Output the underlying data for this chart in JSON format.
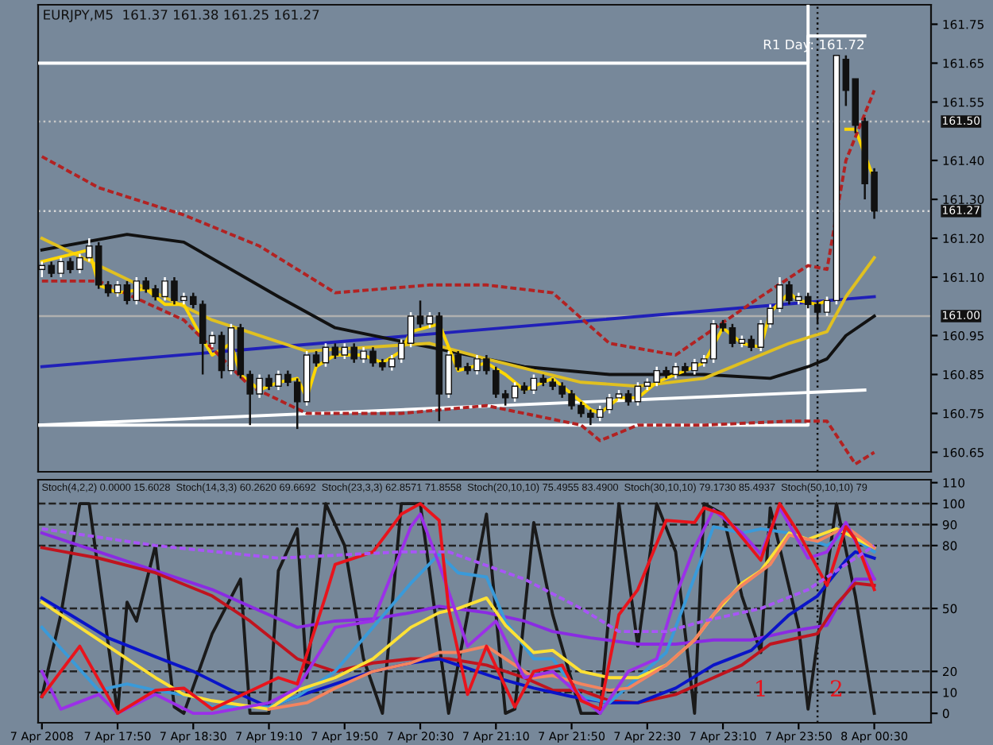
{
  "chart_data": [
    {
      "type": "candlestick",
      "title": "EURJPY,M5  161.37 161.38 161.25 161.27",
      "x": [
        "2008-04-07T17:10",
        "2008-04-07T17:15",
        "2008-04-07T17:20",
        "2008-04-07T17:25",
        "2008-04-07T17:30",
        "2008-04-07T17:35",
        "2008-04-07T17:40",
        "2008-04-07T17:45",
        "2008-04-07T17:50",
        "2008-04-07T17:55",
        "2008-04-07T18:00",
        "2008-04-07T18:05",
        "2008-04-07T18:10",
        "2008-04-07T18:15",
        "2008-04-07T18:20",
        "2008-04-07T18:25",
        "2008-04-07T18:30",
        "2008-04-07T18:35",
        "2008-04-07T18:40",
        "2008-04-07T18:45",
        "2008-04-07T18:50",
        "2008-04-07T18:55",
        "2008-04-07T19:00",
        "2008-04-07T19:05",
        "2008-04-07T19:10",
        "2008-04-07T19:15",
        "2008-04-07T19:20",
        "2008-04-07T19:25",
        "2008-04-07T19:30",
        "2008-04-07T19:35",
        "2008-04-07T19:40",
        "2008-04-07T19:45",
        "2008-04-07T19:50",
        "2008-04-07T19:55",
        "2008-04-07T20:00",
        "2008-04-07T20:05",
        "2008-04-07T20:10",
        "2008-04-07T20:15",
        "2008-04-07T20:20",
        "2008-04-07T20:25",
        "2008-04-07T20:30",
        "2008-04-07T20:35",
        "2008-04-07T20:40",
        "2008-04-07T20:45",
        "2008-04-07T20:50",
        "2008-04-07T20:55",
        "2008-04-07T21:00",
        "2008-04-07T21:05",
        "2008-04-07T21:10",
        "2008-04-07T21:15",
        "2008-04-07T21:20",
        "2008-04-07T21:25",
        "2008-04-07T21:30",
        "2008-04-07T21:35",
        "2008-04-07T21:40",
        "2008-04-07T21:45",
        "2008-04-07T21:50",
        "2008-04-07T21:55",
        "2008-04-07T22:00",
        "2008-04-07T22:05",
        "2008-04-07T22:10",
        "2008-04-07T22:15",
        "2008-04-07T22:20",
        "2008-04-07T22:25",
        "2008-04-07T22:30",
        "2008-04-07T22:35",
        "2008-04-07T22:40",
        "2008-04-07T22:45",
        "2008-04-07T22:50",
        "2008-04-07T22:55",
        "2008-04-07T23:00",
        "2008-04-07T23:05",
        "2008-04-07T23:10",
        "2008-04-07T23:15",
        "2008-04-07T23:20",
        "2008-04-07T23:25",
        "2008-04-07T23:30",
        "2008-04-07T23:35",
        "2008-04-07T23:40",
        "2008-04-07T23:45",
        "2008-04-07T23:50",
        "2008-04-07T23:55",
        "2008-04-08T00:00",
        "2008-04-08T00:05",
        "2008-04-08T00:10",
        "2008-04-08T00:15",
        "2008-04-08T00:20",
        "2008-04-08T00:25",
        "2008-04-08T00:30"
      ],
      "ohlc": [
        [
          161.12,
          161.14,
          161.1,
          161.13
        ],
        [
          161.13,
          161.14,
          161.1,
          161.11
        ],
        [
          161.11,
          161.15,
          161.1,
          161.14
        ],
        [
          161.14,
          161.15,
          161.11,
          161.12
        ],
        [
          161.12,
          161.16,
          161.11,
          161.15
        ],
        [
          161.15,
          161.2,
          161.14,
          161.18
        ],
        [
          161.18,
          161.19,
          161.07,
          161.08
        ],
        [
          161.08,
          161.09,
          161.05,
          161.06
        ],
        [
          161.06,
          161.09,
          161.05,
          161.08
        ],
        [
          161.08,
          161.09,
          161.03,
          161.04
        ],
        [
          161.04,
          161.1,
          161.03,
          161.09
        ],
        [
          161.09,
          161.1,
          161.06,
          161.07
        ],
        [
          161.07,
          161.08,
          161.04,
          161.05
        ],
        [
          161.05,
          161.1,
          161.04,
          161.09
        ],
        [
          161.09,
          161.1,
          161.03,
          161.04
        ],
        [
          161.04,
          161.06,
          161.03,
          161.05
        ],
        [
          161.05,
          161.06,
          161.02,
          161.03
        ],
        [
          161.03,
          161.04,
          160.85,
          160.93
        ],
        [
          160.93,
          160.96,
          160.92,
          160.95
        ],
        [
          160.95,
          160.96,
          160.84,
          160.86
        ],
        [
          160.86,
          160.98,
          160.85,
          160.97
        ],
        [
          160.97,
          160.98,
          160.84,
          160.85
        ],
        [
          160.85,
          160.86,
          160.72,
          160.8
        ],
        [
          160.8,
          160.85,
          160.79,
          160.84
        ],
        [
          160.84,
          160.85,
          160.81,
          160.82
        ],
        [
          160.82,
          160.86,
          160.81,
          160.85
        ],
        [
          160.85,
          160.86,
          160.82,
          160.83
        ],
        [
          160.83,
          160.84,
          160.71,
          160.78
        ],
        [
          160.78,
          160.91,
          160.77,
          160.9
        ],
        [
          160.9,
          160.91,
          160.87,
          160.88
        ],
        [
          160.88,
          160.93,
          160.87,
          160.92
        ],
        [
          160.92,
          160.93,
          160.89,
          160.9
        ],
        [
          160.9,
          160.93,
          160.89,
          160.92
        ],
        [
          160.92,
          160.93,
          160.88,
          160.89
        ],
        [
          160.89,
          160.92,
          160.88,
          160.91
        ],
        [
          160.91,
          160.92,
          160.87,
          160.88
        ],
        [
          160.88,
          160.89,
          160.86,
          160.87
        ],
        [
          160.87,
          160.9,
          160.86,
          160.89
        ],
        [
          160.89,
          160.94,
          160.88,
          160.93
        ],
        [
          160.93,
          161.01,
          160.92,
          161.0
        ],
        [
          161.0,
          161.04,
          160.97,
          160.98
        ],
        [
          160.98,
          161.01,
          160.97,
          161.0
        ],
        [
          161.0,
          161.01,
          160.73,
          160.8
        ],
        [
          160.8,
          160.91,
          160.79,
          160.9
        ],
        [
          160.9,
          160.91,
          160.86,
          160.87
        ],
        [
          160.87,
          160.88,
          160.85,
          160.86
        ],
        [
          160.86,
          160.9,
          160.85,
          160.89
        ],
        [
          160.89,
          160.9,
          160.85,
          160.86
        ],
        [
          160.86,
          160.87,
          160.79,
          160.8
        ],
        [
          160.8,
          160.81,
          160.77,
          160.79
        ],
        [
          160.79,
          160.83,
          160.78,
          160.82
        ],
        [
          160.82,
          160.83,
          160.8,
          160.81
        ],
        [
          160.81,
          160.85,
          160.8,
          160.84
        ],
        [
          160.84,
          160.85,
          160.82,
          160.83
        ],
        [
          160.83,
          160.84,
          160.81,
          160.82
        ],
        [
          160.82,
          160.83,
          160.79,
          160.8
        ],
        [
          160.8,
          160.81,
          160.76,
          160.77
        ],
        [
          160.77,
          160.78,
          160.74,
          160.75
        ],
        [
          160.75,
          160.76,
          160.72,
          160.74
        ],
        [
          160.74,
          160.77,
          160.73,
          160.76
        ],
        [
          160.76,
          160.8,
          160.75,
          160.79
        ],
        [
          160.79,
          160.81,
          160.78,
          160.8
        ],
        [
          160.8,
          160.81,
          160.77,
          160.78
        ],
        [
          160.78,
          160.83,
          160.77,
          160.82
        ],
        [
          160.82,
          160.84,
          160.81,
          160.83
        ],
        [
          160.83,
          160.87,
          160.82,
          160.86
        ],
        [
          160.86,
          160.87,
          160.84,
          160.85
        ],
        [
          160.85,
          160.88,
          160.84,
          160.87
        ],
        [
          160.87,
          160.88,
          160.85,
          160.86
        ],
        [
          160.86,
          160.89,
          160.85,
          160.88
        ],
        [
          160.88,
          160.9,
          160.87,
          160.89
        ],
        [
          160.89,
          160.99,
          160.88,
          160.98
        ],
        [
          160.98,
          160.99,
          160.96,
          160.97
        ],
        [
          160.97,
          160.98,
          160.92,
          160.93
        ],
        [
          160.93,
          160.95,
          160.92,
          160.94
        ],
        [
          160.94,
          160.95,
          160.91,
          160.92
        ],
        [
          160.92,
          160.99,
          160.91,
          160.98
        ],
        [
          160.98,
          161.03,
          160.97,
          161.02
        ],
        [
          161.02,
          161.1,
          161.01,
          161.08
        ],
        [
          161.08,
          161.09,
          161.03,
          161.04
        ],
        [
          161.04,
          161.06,
          161.03,
          161.05
        ],
        [
          161.05,
          161.06,
          161.02,
          161.03
        ],
        [
          161.03,
          161.04,
          160.98,
          161.01
        ],
        [
          161.01,
          161.05,
          161.0,
          161.04
        ],
        [
          161.04,
          161.67,
          161.03,
          161.67
        ],
        [
          161.66,
          161.67,
          161.54,
          161.58
        ],
        [
          161.61,
          161.61,
          161.47,
          161.49
        ],
        [
          161.5,
          161.51,
          161.3,
          161.34
        ],
        [
          161.37,
          161.38,
          161.25,
          161.27
        ]
      ],
      "series": [
        {
          "type": "line",
          "color": "#ffffff",
          "x": [
            "2008-04-07T17:08",
            "2008-04-07T23:55",
            "2008-04-07T23:55",
            "2008-04-08T00:25"
          ],
          "values": [
            161.65,
            161.65,
            161.72,
            161.72
          ]
        },
        {
          "type": "line",
          "color": "#ffffff",
          "x": [
            "2008-04-07T17:08",
            "2008-04-07T23:55",
            "2008-04-07T23:55"
          ],
          "values": [
            160.72,
            160.72,
            161.8
          ]
        },
        {
          "type": "line",
          "color": "#ffffff",
          "x": [
            "2008-04-07T17:08",
            "2008-04-08T00:25"
          ],
          "values": [
            160.72,
            160.81
          ]
        },
        {
          "type": "line",
          "color": "#2020b8",
          "x": [
            "2008-04-07T17:10",
            "2008-04-08T00:30"
          ],
          "values": [
            160.87,
            161.05
          ]
        },
        {
          "type": "line",
          "color": "#b22222",
          "line_style": "dashed",
          "x": [
            "2008-04-07T17:10",
            "2008-04-07T17:40",
            "2008-04-07T18:25",
            "2008-04-07T19:05",
            "2008-04-07T19:15",
            "2008-04-07T19:45",
            "2008-04-07T20:35",
            "2008-04-07T21:05",
            "2008-04-07T21:40",
            "2008-04-07T22:10",
            "2008-04-07T22:45",
            "2008-04-07T23:30",
            "2008-04-07T23:55",
            "2008-04-08T00:05",
            "2008-04-08T00:15",
            "2008-04-08T00:30"
          ],
          "values": [
            161.41,
            161.33,
            161.26,
            161.18,
            161.15,
            161.06,
            161.08,
            161.08,
            161.06,
            160.93,
            160.9,
            161.05,
            161.13,
            161.12,
            161.4,
            161.58
          ]
        },
        {
          "type": "line",
          "color": "#b22222",
          "line_style": "dashed",
          "x": [
            "2008-04-07T17:10",
            "2008-04-07T17:40",
            "2008-04-07T18:25",
            "2008-04-07T19:00",
            "2008-04-07T19:30",
            "2008-04-07T20:20",
            "2008-04-07T21:05",
            "2008-04-07T21:55",
            "2008-04-07T22:05",
            "2008-04-07T22:25",
            "2008-04-07T23:00",
            "2008-04-07T23:45",
            "2008-04-08T00:05",
            "2008-04-08T00:20",
            "2008-04-08T00:30"
          ],
          "values": [
            161.09,
            161.09,
            160.99,
            160.82,
            160.75,
            160.75,
            160.77,
            160.72,
            160.68,
            160.72,
            160.72,
            160.73,
            160.73,
            160.62,
            160.65
          ]
        },
        {
          "type": "line",
          "color": "#111111",
          "x": [
            "2008-04-07T17:10",
            "2008-04-07T17:55",
            "2008-04-07T18:25",
            "2008-04-07T19:15",
            "2008-04-07T19:45",
            "2008-04-07T20:35",
            "2008-04-07T21:25",
            "2008-04-07T22:10",
            "2008-04-07T23:00",
            "2008-04-07T23:35",
            "2008-04-07T23:55",
            "2008-04-08T00:05",
            "2008-04-08T00:15",
            "2008-04-08T00:30"
          ],
          "values": [
            161.17,
            161.21,
            161.19,
            161.05,
            160.97,
            160.92,
            160.87,
            160.85,
            160.85,
            160.84,
            160.87,
            160.89,
            160.95,
            161.0
          ]
        },
        {
          "type": "line",
          "color": "#e0c020",
          "x": [
            "2008-04-07T17:10",
            "2008-04-07T18:40",
            "2008-04-07T19:30",
            "2008-04-07T20:35",
            "2008-04-07T21:05",
            "2008-04-07T21:55",
            "2008-04-07T22:25",
            "2008-04-07T23:00",
            "2008-04-07T23:45",
            "2008-04-08T00:05",
            "2008-04-08T00:15",
            "2008-04-08T00:30"
          ],
          "values": [
            161.2,
            160.99,
            160.91,
            160.93,
            160.89,
            160.83,
            160.82,
            160.84,
            160.93,
            160.96,
            161.05,
            161.15
          ]
        },
        {
          "type": "line",
          "color": "#ffd700",
          "x": [
            "2008-04-07T17:10",
            "2008-04-07T17:35",
            "2008-04-07T17:40",
            "2008-04-07T17:50",
            "2008-04-07T18:05",
            "2008-04-07T18:15",
            "2008-04-07T18:25",
            "2008-04-07T18:35",
            "2008-04-07T18:40",
            "2008-04-07T18:50",
            "2008-04-07T18:55",
            "2008-04-07T19:05",
            "2008-04-07T19:15",
            "2008-04-07T19:25",
            "2008-04-07T19:30",
            "2008-04-07T19:35",
            "2008-04-07T19:45",
            "2008-04-07T20:00",
            "2008-04-07T20:10",
            "2008-04-07T20:20",
            "2008-04-07T20:25",
            "2008-04-07T20:40",
            "2008-04-07T20:45",
            "2008-04-07T20:50",
            "2008-04-07T21:05",
            "2008-04-07T21:15",
            "2008-04-07T21:25",
            "2008-04-07T21:30",
            "2008-04-07T21:40",
            "2008-04-07T21:50",
            "2008-04-07T22:00",
            "2008-04-07T22:05",
            "2008-04-07T22:15",
            "2008-04-07T22:25",
            "2008-04-07T22:35",
            "2008-04-07T22:45",
            "2008-04-07T22:55",
            "2008-04-07T23:00",
            "2008-04-07T23:10",
            "2008-04-07T23:20",
            "2008-04-07T23:30",
            "2008-04-07T23:35",
            "2008-04-07T23:45",
            "2008-04-07T23:50",
            "2008-04-08T00:00",
            "2008-04-08T00:05",
            "2008-04-08T00:10",
            "2008-04-08T00:15",
            "2008-04-08T00:20",
            "2008-04-08T00:30"
          ],
          "values": [
            161.14,
            161.17,
            161.08,
            161.06,
            161.07,
            161.03,
            161.03,
            160.94,
            160.9,
            160.93,
            160.85,
            160.81,
            160.83,
            160.84,
            160.79,
            160.87,
            160.9,
            160.9,
            160.88,
            160.91,
            160.96,
            160.98,
            160.92,
            160.86,
            160.88,
            160.85,
            160.81,
            160.82,
            160.84,
            160.8,
            160.76,
            160.75,
            160.79,
            160.79,
            160.83,
            160.85,
            160.87,
            160.88,
            160.97,
            160.93,
            160.92,
            161.01,
            161.06,
            161.04,
            161.03,
            161.04,
            null,
            161.48,
            161.48,
            161.35
          ]
        }
      ],
      "ref_lines": [
        {
          "axis": "y",
          "value": 161.5,
          "label": "161.50",
          "color": "#c8c8c8",
          "line_style": "dotted"
        },
        {
          "axis": "y",
          "value": 161.27,
          "label": "161.27",
          "color": "#d8d8d8",
          "line_style": "dotted"
        },
        {
          "axis": "y",
          "value": 161.0,
          "label": "161.00",
          "color": "#b0b0b0",
          "line_style": "solid"
        },
        {
          "axis": "x",
          "value": "2008-04-08T00:00",
          "color": "#111111",
          "line_style": "dotted"
        }
      ],
      "annotations": [
        {
          "text": "R1 Day: 161.72",
          "x": "2008-04-08T00:25",
          "y": 161.72
        }
      ],
      "xlim": [
        "2008-04-07T17:08",
        "2008-04-08T01:00"
      ],
      "ylim": [
        160.6,
        161.8
      ],
      "yticks": [
        160.65,
        160.75,
        160.85,
        160.95,
        {
          "value": 161.1,
          "label": "161.10"
        },
        {
          "value": 161.2,
          "label": "161.20"
        },
        {
          "value": 161.3,
          "label": "161.30"
        },
        {
          "value": 161.4,
          "label": "161.40"
        },
        161.55,
        161.65,
        161.75
      ],
      "tick_labels": "y",
      "legend": false
    },
    {
      "type": "line",
      "annotations": [
        "Stoch(4,2,2) 0.0000 15.6028  Stoch(14,3,3) 60.2620 69.6692  Stoch(23,3,3) 62.8571 71.8558  Stoch(20,10,10) 75.4955 83.4900  Stoch(30,10,10) 79.1730 85.4937  Stoch(50,10,10) 79",
        {
          "text": "1",
          "x": "2008-04-07T23:30",
          "y": 11
        },
        {
          "text": "2",
          "x": "2008-04-08T00:10",
          "y": 11
        }
      ],
      "series": [
        {
          "color": "#1a1a1a",
          "x": [
            "2008-04-07T17:10",
            "2008-04-07T17:20",
            "2008-04-07T17:30",
            "2008-04-07T17:35",
            "2008-04-07T17:50",
            "2008-04-07T17:55",
            "2008-04-07T18:00",
            "2008-04-07T18:10",
            "2008-04-07T18:20",
            "2008-04-07T18:25",
            "2008-04-07T18:40",
            "2008-04-07T18:55",
            "2008-04-07T19:00",
            "2008-04-07T19:10",
            "2008-04-07T19:15",
            "2008-04-07T19:25",
            "2008-04-07T19:30",
            "2008-04-07T19:40",
            "2008-04-07T19:50",
            "2008-04-07T20:00",
            "2008-04-07T20:10",
            "2008-04-07T20:20",
            "2008-04-07T20:30",
            "2008-04-07T20:45",
            "2008-04-07T20:50",
            "2008-04-07T21:05",
            "2008-04-07T21:15",
            "2008-04-07T21:20",
            "2008-04-07T21:30",
            "2008-04-07T21:40",
            "2008-04-07T21:55",
            "2008-04-07T22:05",
            "2008-04-07T22:15",
            "2008-04-07T22:25",
            "2008-04-07T22:35",
            "2008-04-07T22:45",
            "2008-04-07T22:55",
            "2008-04-07T23:00",
            "2008-04-07T23:10",
            "2008-04-07T23:20",
            "2008-04-07T23:30",
            "2008-04-07T23:35",
            "2008-04-07T23:50",
            "2008-04-07T23:55",
            "2008-04-08T00:10",
            "2008-04-08T00:20",
            "2008-04-08T00:30"
          ],
          "values": [
            8,
            47,
            100,
            100,
            0,
            53,
            44,
            80,
            3,
            0,
            38,
            64,
            0,
            0,
            68,
            88,
            17,
            100,
            80,
            26,
            0,
            100,
            100,
            0,
            23,
            95,
            0,
            2,
            91,
            47,
            0,
            0,
            100,
            32,
            100,
            77,
            0,
            100,
            95,
            56,
            29,
            98,
            41,
            2,
            100,
            56,
            0
          ]
        },
        {
          "color": "#a855f7",
          "line_style": "dashed",
          "x": [
            "2008-04-07T17:10",
            "2008-04-07T18:10",
            "2008-04-07T19:15",
            "2008-04-07T20:20",
            "2008-04-07T20:45",
            "2008-04-07T21:25",
            "2008-04-07T21:55",
            "2008-04-07T22:15",
            "2008-04-07T22:40",
            "2008-04-07T23:00",
            "2008-04-07T23:30",
            "2008-04-07T23:55",
            "2008-04-08T00:15",
            "2008-04-08T00:30"
          ],
          "values": [
            88,
            80,
            74,
            77,
            77,
            64,
            50,
            39,
            39,
            44,
            50,
            59,
            71,
            80
          ]
        },
        {
          "color": "#8a2be2",
          "x": [
            "2008-04-07T17:10",
            "2008-04-07T17:40",
            "2008-04-07T18:10",
            "2008-04-07T18:40",
            "2008-04-07T19:10",
            "2008-04-07T19:25",
            "2008-04-07T19:45",
            "2008-04-07T20:05",
            "2008-04-07T20:25",
            "2008-04-07T20:40",
            "2008-04-07T21:05",
            "2008-04-07T21:25",
            "2008-04-07T21:40",
            "2008-04-07T22:00",
            "2008-04-07T22:25",
            "2008-04-07T22:45",
            "2008-04-07T23:05",
            "2008-04-07T23:25",
            "2008-04-07T23:45",
            "2008-04-08T00:05",
            "2008-04-08T00:10",
            "2008-04-08T00:20",
            "2008-04-08T00:30"
          ],
          "values": [
            86,
            77,
            68,
            59,
            47,
            41,
            44,
            45,
            48,
            51,
            48,
            44,
            39,
            36,
            33,
            33,
            35,
            35,
            39,
            42,
            50,
            64,
            64
          ]
        },
        {
          "color": "#c0141e",
          "x": [
            "2008-04-07T17:10",
            "2008-04-07T17:40",
            "2008-04-07T18:10",
            "2008-04-07T18:40",
            "2008-04-07T19:00",
            "2008-04-07T19:25",
            "2008-04-07T19:45",
            "2008-04-07T20:05",
            "2008-04-07T20:25",
            "2008-04-07T20:45",
            "2008-04-07T21:05",
            "2008-04-07T21:25",
            "2008-04-07T21:40",
            "2008-04-07T21:55",
            "2008-04-07T22:10",
            "2008-04-07T22:25",
            "2008-04-07T22:45",
            "2008-04-07T23:05",
            "2008-04-07T23:20",
            "2008-04-07T23:35",
            "2008-04-08T00:00",
            "2008-04-08T00:10",
            "2008-04-08T00:20",
            "2008-04-08T00:30"
          ],
          "values": [
            79,
            74,
            67,
            56,
            44,
            26,
            20,
            24,
            26,
            26,
            23,
            17,
            11,
            11,
            6,
            5,
            9,
            17,
            23,
            33,
            38,
            52,
            62,
            61
          ]
        },
        {
          "color": "#0a14c8",
          "x": [
            "2008-04-07T17:10",
            "2008-04-07T17:25",
            "2008-04-07T17:45",
            "2008-04-07T18:10",
            "2008-04-07T18:30",
            "2008-04-07T18:50",
            "2008-04-07T19:10",
            "2008-04-07T19:25",
            "2008-04-07T19:45",
            "2008-04-07T20:05",
            "2008-04-07T20:25",
            "2008-04-07T20:40",
            "2008-04-07T20:50",
            "2008-04-07T21:10",
            "2008-04-07T21:30",
            "2008-04-07T21:50",
            "2008-04-07T22:10",
            "2008-04-07T22:25",
            "2008-04-07T22:45",
            "2008-04-07T23:05",
            "2008-04-07T23:25",
            "2008-04-07T23:45",
            "2008-04-08T00:00",
            "2008-04-08T00:15",
            "2008-04-08T00:20",
            "2008-04-08T00:30"
          ],
          "values": [
            55,
            47,
            36,
            27,
            20,
            11,
            3,
            8,
            14,
            20,
            24,
            26,
            23,
            17,
            12,
            8,
            5,
            5,
            12,
            23,
            30,
            47,
            56,
            73,
            77,
            74
          ]
        },
        {
          "color": "#3a9ad9",
          "x": [
            "2008-04-07T17:10",
            "2008-04-07T17:25",
            "2008-04-07T17:40",
            "2008-04-07T17:55",
            "2008-04-07T18:10",
            "2008-04-07T18:30",
            "2008-04-07T18:40",
            "2008-04-07T19:10",
            "2008-04-07T19:25",
            "2008-04-07T19:45",
            "2008-04-07T20:05",
            "2008-04-07T20:25",
            "2008-04-07T20:40",
            "2008-04-07T20:50",
            "2008-04-07T21:05",
            "2008-04-07T21:15",
            "2008-04-07T21:30",
            "2008-04-07T21:40",
            "2008-04-07T21:55",
            "2008-04-07T22:10",
            "2008-04-07T22:25",
            "2008-04-07T22:40",
            "2008-04-07T22:55",
            "2008-04-07T23:05",
            "2008-04-07T23:20",
            "2008-04-07T23:30",
            "2008-04-07T23:45",
            "2008-04-08T00:05",
            "2008-04-08T00:15",
            "2008-04-08T00:30"
          ],
          "values": [
            41,
            26,
            11,
            14,
            11,
            8,
            3,
            3,
            8,
            20,
            41,
            62,
            76,
            67,
            65,
            44,
            26,
            26,
            8,
            5,
            17,
            29,
            65,
            89,
            86,
            88,
            86,
            80,
            86,
            77
          ]
        },
        {
          "color": "#ffe135",
          "x": [
            "2008-04-07T17:10",
            "2008-04-07T17:25",
            "2008-04-07T17:40",
            "2008-04-07T18:00",
            "2008-04-07T18:10",
            "2008-04-07T18:25",
            "2008-04-07T18:40",
            "2008-04-07T19:10",
            "2008-04-07T19:25",
            "2008-04-07T19:45",
            "2008-04-07T20:05",
            "2008-04-07T20:25",
            "2008-04-07T20:40",
            "2008-04-07T20:50",
            "2008-04-07T21:05",
            "2008-04-07T21:15",
            "2008-04-07T21:30",
            "2008-04-07T21:40",
            "2008-04-07T21:55",
            "2008-04-07T22:10",
            "2008-04-07T22:25",
            "2008-04-07T22:40",
            "2008-04-07T22:55",
            "2008-04-07T23:05",
            "2008-04-07T23:20",
            "2008-04-07T23:30",
            "2008-04-07T23:45",
            "2008-04-07T23:55",
            "2008-04-08T00:10",
            "2008-04-08T00:30"
          ],
          "values": [
            53,
            44,
            35,
            23,
            17,
            9,
            6,
            2,
            11,
            17,
            26,
            41,
            48,
            50,
            55,
            42,
            29,
            30,
            20,
            17,
            17,
            23,
            35,
            47,
            62,
            68,
            86,
            83,
            88,
            79
          ]
        },
        {
          "color": "#f4845f",
          "x": [
            "2008-04-07T19:10",
            "2008-04-07T19:30",
            "2008-04-07T19:45",
            "2008-04-07T20:05",
            "2008-04-07T20:25",
            "2008-04-07T20:40",
            "2008-04-07T20:50",
            "2008-04-07T21:05",
            "2008-04-07T21:15",
            "2008-04-07T21:30",
            "2008-04-07T21:40",
            "2008-04-07T21:55",
            "2008-04-07T22:10",
            "2008-04-07T22:20",
            "2008-04-07T22:40",
            "2008-04-07T22:55",
            "2008-04-07T23:10",
            "2008-04-07T23:20",
            "2008-04-07T23:35",
            "2008-04-07T23:45",
            "2008-04-08T00:00",
            "2008-04-08T00:15",
            "2008-04-08T00:30"
          ],
          "values": [
            2,
            5,
            12,
            20,
            24,
            29,
            29,
            32,
            26,
            17,
            18,
            14,
            11,
            12,
            23,
            35,
            53,
            61,
            71,
            85,
            82,
            89,
            79
          ]
        },
        {
          "color": "#9b30e8",
          "x": [
            "2008-04-07T17:10",
            "2008-04-07T17:20",
            "2008-04-07T17:40",
            "2008-04-07T17:50",
            "2008-04-07T18:10",
            "2008-04-07T18:30",
            "2008-04-07T18:40",
            "2008-04-07T19:10",
            "2008-04-07T19:25",
            "2008-04-07T19:45",
            "2008-04-07T20:05",
            "2008-04-07T20:25",
            "2008-04-07T20:30",
            "2008-04-07T20:40",
            "2008-04-07T20:55",
            "2008-04-07T21:10",
            "2008-04-07T21:25",
            "2008-04-07T21:40",
            "2008-04-07T21:55",
            "2008-04-07T22:05",
            "2008-04-07T22:20",
            "2008-04-07T22:35",
            "2008-04-07T22:45",
            "2008-04-07T22:55",
            "2008-04-07T23:05",
            "2008-04-07T23:20",
            "2008-04-07T23:30",
            "2008-04-07T23:40",
            "2008-04-07T23:55",
            "2008-04-08T00:05",
            "2008-04-08T00:15",
            "2008-04-08T00:30"
          ],
          "values": [
            20,
            2,
            9,
            0,
            9,
            0,
            0,
            5,
            12,
            41,
            44,
            89,
            95,
            71,
            32,
            44,
            17,
            20,
            8,
            0,
            20,
            26,
            56,
            79,
            97,
            86,
            76,
            98,
            74,
            77,
            91,
            64
          ]
        },
        {
          "color": "#e8141c",
          "x": [
            "2008-04-07T17:10",
            "2008-04-07T17:30",
            "2008-04-07T17:50",
            "2008-04-07T18:10",
            "2008-04-07T18:25",
            "2008-04-07T18:40",
            "2008-04-07T19:15",
            "2008-04-07T19:25",
            "2008-04-07T19:40",
            "2008-04-07T19:45",
            "2008-04-07T20:05",
            "2008-04-07T20:20",
            "2008-04-07T20:30",
            "2008-04-07T20:40",
            "2008-04-07T20:45",
            "2008-04-07T20:55",
            "2008-04-07T21:05",
            "2008-04-07T21:20",
            "2008-04-07T21:30",
            "2008-04-07T21:45",
            "2008-04-07T21:55",
            "2008-04-07T22:05",
            "2008-04-07T22:15",
            "2008-04-07T22:25",
            "2008-04-07T22:40",
            "2008-04-07T22:55",
            "2008-04-07T23:00",
            "2008-04-07T23:10",
            "2008-04-07T23:30",
            "2008-04-07T23:40",
            "2008-04-07T23:50",
            "2008-04-08T00:05",
            "2008-04-08T00:15",
            "2008-04-08T00:20",
            "2008-04-08T00:30"
          ],
          "values": [
            8,
            32,
            0,
            11,
            12,
            2,
            17,
            14,
            56,
            71,
            77,
            95,
            100,
            92,
            50,
            9,
            32,
            3,
            20,
            23,
            6,
            2,
            47,
            59,
            92,
            91,
            98,
            95,
            73,
            100,
            86,
            61,
            89,
            83,
            59
          ]
        }
      ],
      "ref_lines": [
        {
          "axis": "y",
          "value": 100,
          "color": "#222222",
          "line_style": "dashed"
        },
        {
          "axis": "y",
          "value": 90,
          "color": "#222222",
          "line_style": "dashed"
        },
        {
          "axis": "y",
          "value": 80,
          "color": "#222222",
          "line_style": "dashed"
        },
        {
          "axis": "y",
          "value": 50,
          "color": "#222222",
          "line_style": "dashed"
        },
        {
          "axis": "y",
          "value": 20,
          "color": "#222222",
          "line_style": "dashed"
        },
        {
          "axis": "y",
          "value": 10,
          "color": "#222222",
          "line_style": "dashed"
        },
        {
          "axis": "x",
          "value": "2008-04-08T00:00",
          "color": "#111111",
          "line_style": "dotted"
        }
      ],
      "xlim": [
        "2008-04-07T17:08",
        "2008-04-08T01:00"
      ],
      "ylim": [
        -4.5,
        111.4
      ],
      "xticks": [
        {
          "value": "2008-04-07T17:10",
          "label": "7 Apr 2008"
        },
        {
          "value": "2008-04-07T17:50",
          "label": "7 Apr 17:50"
        },
        {
          "value": "2008-04-07T18:30",
          "label": "7 Apr 18:30"
        },
        {
          "value": "2008-04-07T19:10",
          "label": "7 Apr 19:10"
        },
        {
          "value": "2008-04-07T19:50",
          "label": "7 Apr 19:50"
        },
        {
          "value": "2008-04-07T20:30",
          "label": "7 Apr 20:30"
        },
        {
          "value": "2008-04-07T21:10",
          "label": "7 Apr 21:10"
        },
        {
          "value": "2008-04-07T21:50",
          "label": "7 Apr 21:50"
        },
        {
          "value": "2008-04-07T22:30",
          "label": "7 Apr 22:30"
        },
        {
          "value": "2008-04-07T23:10",
          "label": "7 Apr 23:10"
        },
        {
          "value": "2008-04-07T23:50",
          "label": "7 Apr 23:50"
        },
        {
          "value": "2008-04-08T00:30",
          "label": "8 Apr 00:30"
        }
      ],
      "yticks": [
        0,
        10,
        20,
        50,
        80,
        90,
        100,
        110
      ],
      "legend": false
    }
  ]
}
